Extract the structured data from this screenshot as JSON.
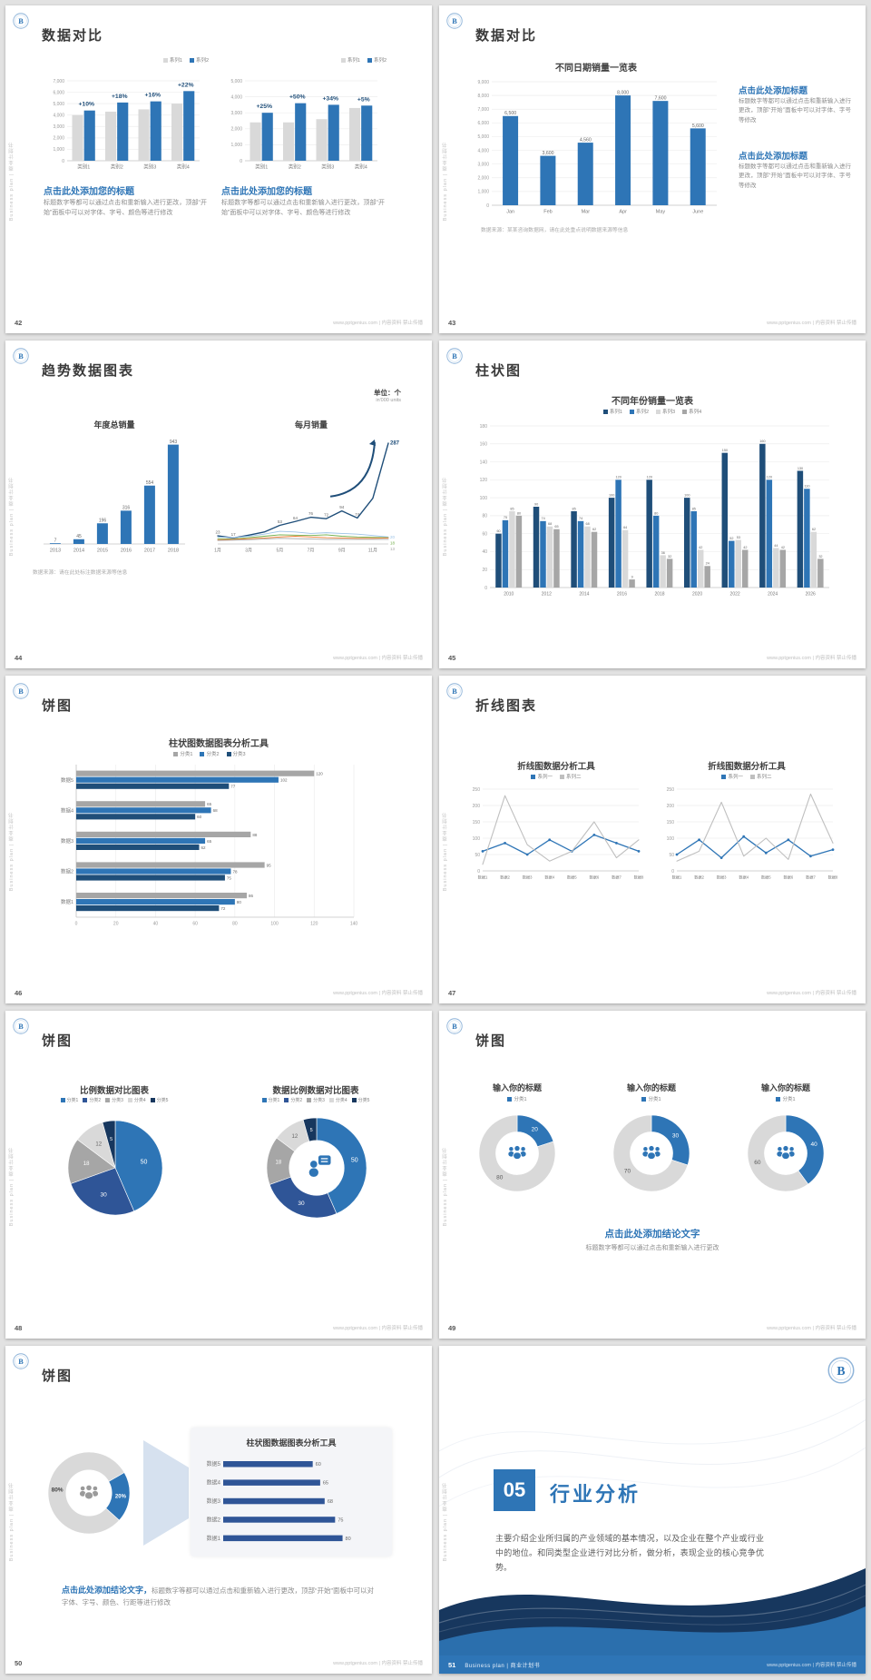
{
  "common": {
    "sidebar_text": "Business plan | 商业计划书",
    "footer_site": "www.pptgenius.com | 内容资料 禁止传播",
    "accent_color": "#2e75b6",
    "dark_accent_color": "#1f4e79"
  },
  "slides": {
    "s42": {
      "page": "42",
      "title": "数据对比",
      "left_heading": "点击此处添加您的标题",
      "left_body": "标题数字等都可以通过点击和重新输入进行更改，顶部“开始”面板中可以对字体、字号、颜色等进行修改",
      "right_heading": "点击此处添加您的标题",
      "right_body": "标题数字等都可以通过点击和重新输入进行更改，顶部“开始”面板中可以对字体、字号、颜色等进行修改"
    },
    "s43": {
      "page": "43",
      "title": "数据对比",
      "chart_title": "不同日期销量一览表",
      "block1_heading": "点击此处添加标题",
      "block1_body": "标题数字等都可以通过点击和重新输入进行更改，顶部“开始”面板中可以对字体、字号等修改",
      "block2_heading": "点击此处添加标题",
      "block2_body": "标题数字等都可以通过点击和重新输入进行更改，顶部“开始”面板中可以对字体、字号等修改",
      "note": "数据来源：某某咨询数据网，请在此处重点说明数据来源等信息"
    },
    "s44": {
      "page": "44",
      "title": "趋势数据图表",
      "unit_line1": "单位：个",
      "unit_line2": "in'000 units",
      "chartA_title": "年度总销量",
      "chartB_title": "每月销量",
      "note": "数据来源：请在此处标注数据来源等信息"
    },
    "s45": {
      "page": "45",
      "title": "柱状图",
      "chart_title": "不同年份销量一览表"
    },
    "s46": {
      "page": "46",
      "title": "饼图",
      "chart_title": "柱状图数据图表分析工具"
    },
    "s47": {
      "page": "47",
      "title": "折线图表",
      "chartA_title": "折线图数据分析工具",
      "chartB_title": "折线图数据分析工具"
    },
    "s48": {
      "page": "48",
      "title": "饼图",
      "chartA_title": "比例数据对比图表",
      "chartB_title": "数据比例数据对比图表"
    },
    "s49": {
      "page": "49",
      "title": "饼图",
      "col_title": "输入你的标题",
      "heading": "点击此处添加结论文字",
      "body": "标题数字等都可以通过点击和重新输入进行更改"
    },
    "s50": {
      "page": "50",
      "title": "饼图",
      "panel_title": "柱状图数据图表分析工具",
      "heading": "点击此处添加结论文字，",
      "body": "标题数字等都可以通过点击和重新输入进行更改，顶部“开始”面板中可以对字体、字号、颜色、行距等进行修改"
    },
    "s51": {
      "page": "51",
      "number": "05",
      "heading": "行业分析",
      "body": "主要介绍企业所归属的产业领域的基本情况，以及企业在整个产业或行业中的地位。和同类型企业进行对比分析，做分析，表现企业的核心竞争优势。",
      "footer_label": "Business plan | 商业计划书"
    }
  },
  "chart_data": {
    "s42a": {
      "type": "vbar",
      "categories": [
        "类别1",
        "类别2",
        "类别3",
        "类别4"
      ],
      "ymax": 7000,
      "yticks": [
        "0",
        "1,000",
        "2,000",
        "3,000",
        "4,000",
        "5,000",
        "6,000",
        "7,000"
      ],
      "annotations": [
        "+10%",
        "+18%",
        "+16%",
        "+22%"
      ],
      "series": [
        {
          "name": "系列1",
          "color": "#d9d9d9",
          "values": [
            4000,
            4300,
            4500,
            5000
          ]
        },
        {
          "name": "系列2",
          "color": "#2e75b6",
          "values": [
            4400,
            5100,
            5200,
            6100
          ]
        }
      ]
    },
    "s42b": {
      "type": "vbar",
      "categories": [
        "类别1",
        "类别2",
        "类别3",
        "类别4"
      ],
      "ymax": 5000,
      "yticks": [
        "0",
        "1,000",
        "2,000",
        "3,000",
        "4,000",
        "5,000"
      ],
      "annotations": [
        "+25%",
        "+50%",
        "+34%",
        "+5%"
      ],
      "series": [
        {
          "name": "系列1",
          "color": "#d9d9d9",
          "values": [
            2400,
            2400,
            2600,
            3300
          ]
        },
        {
          "name": "系列2",
          "color": "#2e75b6",
          "values": [
            3000,
            3600,
            3500,
            3450
          ]
        }
      ]
    },
    "s43": {
      "type": "vbar",
      "categories": [
        "Jan",
        "Feb",
        "Mar",
        "Apr",
        "May",
        "June"
      ],
      "ymax": 9000,
      "yticks": [
        "0",
        "1,000",
        "2,000",
        "3,000",
        "4,000",
        "5,000",
        "6,000",
        "7,000",
        "8,000",
        "9,000"
      ],
      "showValues": true,
      "vfs": 5.2,
      "maxBw": 18,
      "series": [
        {
          "name": "",
          "color": "#2e75b6",
          "values": [
            6500,
            3600,
            4560,
            8000,
            7600,
            5600
          ],
          "labels": [
            "6,500",
            "3,600",
            "4,560",
            "8,000",
            "7,600",
            "5,600"
          ]
        }
      ]
    },
    "s44a": {
      "type": "vbar",
      "categories": [
        "2013",
        "2014",
        "2015",
        "2016",
        "2017",
        "2018"
      ],
      "ymax": 1000,
      "showValues": true,
      "vfs": 5,
      "maxBw": 13,
      "series": [
        {
          "name": "",
          "color": "#2e75b6",
          "values": [
            7,
            45,
            196,
            316,
            554,
            943
          ]
        }
      ]
    },
    "s44b": {
      "type": "line",
      "ymax": 300,
      "xlabels": [
        "1月",
        "",
        "3月",
        "",
        "5月",
        "",
        "7月",
        "",
        "9月",
        "",
        "11月",
        ""
      ],
      "arrow": true,
      "arrowColor": "#1f4e79",
      "series": [
        {
          "color": "#1f4e79",
          "width": 1.4,
          "values": [
            23,
            17,
            25,
            34,
            53,
            64,
            76,
            72,
            94,
            74,
            130,
            287
          ],
          "endLabel": "287",
          "elb": true,
          "elfs": 6,
          "pointLabels": {
            "0": "23",
            "1": "17",
            "4": "53",
            "5": "64",
            "6": "76",
            "7": "72",
            "8": "94",
            "9": "74"
          }
        },
        {
          "color": "#9dc3e6",
          "width": 0.9,
          "values": [
            20,
            18,
            22,
            28,
            36,
            34,
            30,
            32,
            30,
            28,
            24,
            20
          ],
          "endLabel": "20"
        },
        {
          "color": "#70ad47",
          "width": 0.9,
          "values": [
            15,
            14,
            18,
            22,
            26,
            25,
            24,
            26,
            22,
            20,
            19,
            18
          ],
          "endLabel": "18"
        },
        {
          "color": "#ed7d31",
          "width": 0.9,
          "values": [
            12,
            13,
            15,
            17,
            20,
            22,
            20,
            18,
            17,
            16,
            16,
            17
          ]
        },
        {
          "color": "#a6a6a6",
          "width": 0.9,
          "values": [
            10,
            11,
            12,
            14,
            16,
            15,
            14,
            13,
            13,
            13,
            13,
            13
          ],
          "endLabel": "13"
        }
      ]
    },
    "s45": {
      "type": "vbar",
      "categories": [
        "2010",
        "2012",
        "2014",
        "2016",
        "2018",
        "2020",
        "2022",
        "2024",
        "2026"
      ],
      "ymax": 180,
      "yticks": [
        "0",
        "20",
        "40",
        "60",
        "80",
        "100",
        "120",
        "140",
        "160",
        "180"
      ],
      "showValues": true,
      "vfs": 3.8,
      "xfs": 5,
      "series": [
        {
          "name": "系列1",
          "color": "#1f4e79",
          "values": [
            60,
            90,
            85,
            100,
            120,
            100,
            150,
            160,
            130
          ]
        },
        {
          "name": "系列2",
          "color": "#2e75b6",
          "values": [
            75,
            74,
            74,
            120,
            80,
            85,
            52,
            120,
            110
          ]
        },
        {
          "name": "系列3",
          "color": "#d9d9d9",
          "values": [
            85,
            68,
            68,
            64,
            36,
            42,
            53,
            44,
            62
          ]
        },
        {
          "name": "系列4",
          "color": "#a6a6a6",
          "values": [
            80,
            65,
            62,
            9,
            32,
            24,
            42,
            42,
            32
          ]
        }
      ]
    },
    "s46": {
      "type": "hgroup",
      "xmax": 140,
      "xticks": [
        "0",
        "20",
        "40",
        "60",
        "80",
        "100",
        "120",
        "140"
      ],
      "categories": [
        "数据5",
        "数据4",
        "数据3",
        "数据2",
        "数据1"
      ],
      "series": [
        {
          "name": "分类1",
          "color": "#a6a6a6",
          "values": [
            120,
            65,
            88,
            95,
            86
          ]
        },
        {
          "name": "分类2",
          "color": "#2e75b6",
          "values": [
            102,
            68,
            65,
            78,
            80
          ]
        },
        {
          "name": "分类3",
          "color": "#1f4e79",
          "values": [
            77,
            60,
            62,
            75,
            72
          ]
        }
      ]
    },
    "s47a": {
      "type": "line",
      "ymax": 250,
      "yticks": [
        "0",
        "50",
        "100",
        "150",
        "200",
        "250"
      ],
      "xlabels": [
        "数据1",
        "数据2",
        "数据3",
        "数据4",
        "数据5",
        "数据6",
        "数据7",
        "数据8"
      ],
      "xfs": 4.2,
      "mR": 8,
      "series": [
        {
          "name": "系列一",
          "color": "#2e75b6",
          "width": 1.3,
          "dots": true,
          "values": [
            60,
            85,
            50,
            95,
            60,
            110,
            85,
            60
          ]
        },
        {
          "name": "系列二",
          "color": "#bfbfbf",
          "width": 1.1,
          "values": [
            20,
            230,
            80,
            30,
            60,
            150,
            40,
            95
          ]
        }
      ]
    },
    "s47b": {
      "type": "line",
      "ymax": 250,
      "yticks": [
        "0",
        "50",
        "100",
        "150",
        "200",
        "250"
      ],
      "xlabels": [
        "数据1",
        "数据2",
        "数据3",
        "数据4",
        "数据5",
        "数据6",
        "数据7",
        "数据8"
      ],
      "xfs": 4.2,
      "mR": 8,
      "series": [
        {
          "name": "系列一",
          "color": "#2e75b6",
          "width": 1.3,
          "dots": true,
          "values": [
            50,
            95,
            40,
            105,
            55,
            95,
            45,
            65
          ]
        },
        {
          "name": "系列二",
          "color": "#bfbfbf",
          "width": 1.1,
          "values": [
            30,
            60,
            210,
            45,
            100,
            35,
            235,
            85
          ]
        }
      ]
    },
    "s48a": {
      "type": "pie",
      "r": 52,
      "start": -90,
      "legendLabels": [
        "分类1",
        "分类2",
        "分类3",
        "分类4",
        "分类5"
      ],
      "slices": [
        {
          "v": 50,
          "color": "#2e75b6",
          "label": "50",
          "lc": "#ffffff",
          "fs": 7
        },
        {
          "v": 30,
          "color": "#2f5597",
          "label": "30",
          "lc": "#ffffff",
          "fs": 6.5
        },
        {
          "v": 18,
          "color": "#a6a6a6",
          "label": "18",
          "lc": "#ffffff",
          "fs": 6
        },
        {
          "v": 12,
          "color": "#d9d9d9",
          "label": "12",
          "lc": "#666666",
          "fs": 6
        },
        {
          "v": 5,
          "color": "#17375e",
          "label": "5",
          "lc": "#ffffff",
          "fs": 5.5
        }
      ]
    },
    "s48b": {
      "type": "pie",
      "r": 55,
      "ir": 0.55,
      "start": -90,
      "center": "person-bubble",
      "centerColor": "#2e75b6",
      "centerScale": 1.6,
      "legendLabels": [
        "分类1",
        "分类2",
        "分类3",
        "分类4",
        "分类5"
      ],
      "slices": [
        {
          "v": 50,
          "color": "#2e75b6",
          "label": "50",
          "lc": "#ffffff",
          "fs": 7
        },
        {
          "v": 30,
          "color": "#2f5597",
          "label": "30",
          "lc": "#ffffff",
          "fs": 6.5
        },
        {
          "v": 18,
          "color": "#a6a6a6",
          "label": "18",
          "lc": "#ffffff",
          "fs": 6
        },
        {
          "v": 12,
          "color": "#d9d9d9",
          "label": "12",
          "lc": "#666666",
          "fs": 6
        },
        {
          "v": 5,
          "color": "#17375e",
          "label": "5",
          "lc": "#ffffff",
          "fs": 5.5
        }
      ]
    },
    "s49a": {
      "type": "pie",
      "r": 42,
      "ir": 0.56,
      "start": -90,
      "legendLabels": [
        "分类1"
      ],
      "center": "people",
      "centerColor": "#2e75b6",
      "centerScale": 1.2,
      "slices": [
        {
          "v": 20,
          "color": "#2e75b6",
          "label": "20",
          "lc": "#ffffff",
          "fs": 6.5
        },
        {
          "v": 80,
          "color": "#d9d9d9",
          "label": "80",
          "lc": "#595959",
          "fs": 6.5
        }
      ]
    },
    "s49b": {
      "type": "pie",
      "r": 42,
      "ir": 0.56,
      "start": -90,
      "legendLabels": [
        "分类1"
      ],
      "center": "people",
      "centerColor": "#2e75b6",
      "centerScale": 1.2,
      "slices": [
        {
          "v": 30,
          "color": "#2e75b6",
          "label": "30",
          "lc": "#ffffff",
          "fs": 6.5
        },
        {
          "v": 70,
          "color": "#d9d9d9",
          "label": "70",
          "lc": "#595959",
          "fs": 6.5
        }
      ]
    },
    "s49c": {
      "type": "pie",
      "r": 42,
      "ir": 0.56,
      "start": -90,
      "legendLabels": [
        "分类1"
      ],
      "center": "people",
      "centerColor": "#2e75b6",
      "centerScale": 1.2,
      "slices": [
        {
          "v": 40,
          "color": "#2e75b6",
          "label": "40",
          "lc": "#ffffff",
          "fs": 6.5
        },
        {
          "v": 60,
          "color": "#d9d9d9",
          "label": "60",
          "lc": "#595959",
          "fs": 6.5
        }
      ]
    },
    "s50a": {
      "type": "pie",
      "r": 45,
      "ir": 0.56,
      "start": -30,
      "center": "people",
      "centerColor": "#9a9a9a",
      "centerScale": 1.25,
      "slices": [
        {
          "v": 20,
          "color": "#2e75b6",
          "label": "20%",
          "lc": "#ffffff",
          "fs": 6,
          "bold": true
        },
        {
          "v": 80,
          "color": "#d9d9d9",
          "label": "80%",
          "lc": "#404040",
          "fs": 6.5,
          "bold": true
        }
      ]
    },
    "s50b": {
      "type": "hlist",
      "max": 90,
      "color": "#2f5597",
      "rows": [
        [
          "数据5",
          60
        ],
        [
          "数据4",
          65
        ],
        [
          "数据3",
          68
        ],
        [
          "数据2",
          75
        ],
        [
          "数据1",
          80
        ]
      ]
    }
  }
}
